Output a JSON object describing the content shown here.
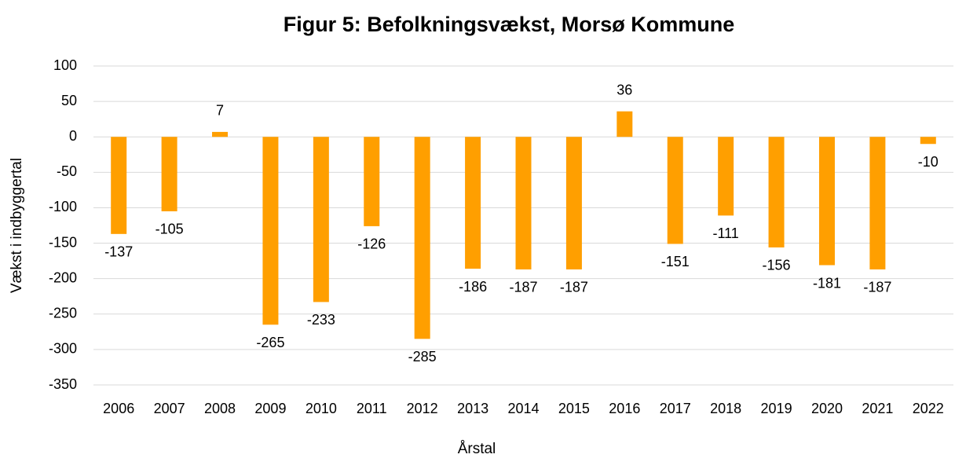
{
  "chart_data": {
    "type": "bar",
    "title": "Figur 5: Befolkningsvækst, Morsø Kommune",
    "x_label": "Årstal",
    "y_label": "Vækst i indbyggertal",
    "categories": [
      "2006",
      "2007",
      "2008",
      "2009",
      "2010",
      "2011",
      "2012",
      "2013",
      "2014",
      "2015",
      "2016",
      "2017",
      "2018",
      "2019",
      "2020",
      "2021",
      "2022"
    ],
    "values": [
      -137,
      -105,
      7,
      -265,
      -233,
      -126,
      -285,
      -186,
      -187,
      -187,
      36,
      -151,
      -111,
      -156,
      -181,
      -187,
      -10
    ],
    "color": "#ff9f00",
    "ylim": [
      -350,
      100
    ],
    "yticks": [
      -350,
      -300,
      -250,
      -200,
      -150,
      -100,
      -50,
      0,
      50,
      100
    ],
    "grid": true
  }
}
